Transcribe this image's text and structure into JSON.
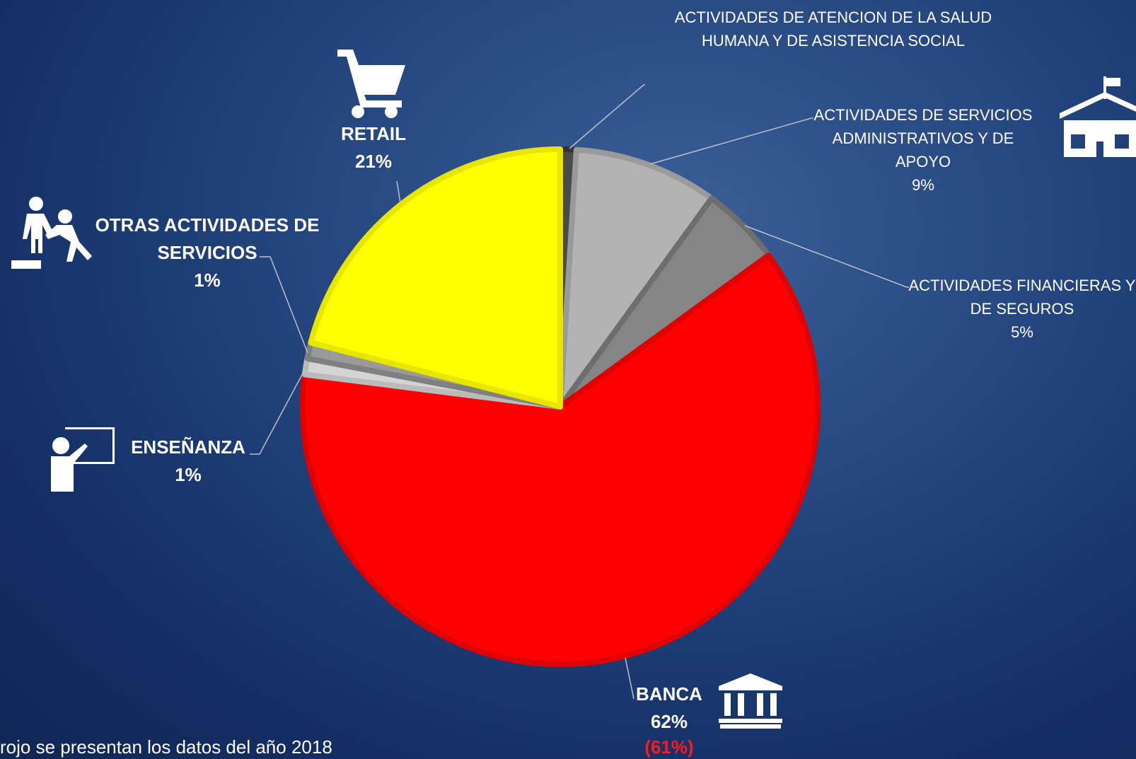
{
  "chart_data": {
    "type": "pie",
    "categories": [
      "ACTIVIDADES DE ATENCION DE LA SALUD HUMANA Y DE ASISTENCIA SOCIAL",
      "ACTIVIDADES DE SERVICIOS ADMINISTRATIVOS Y DE APOYO",
      "ACTIVIDADES FINANCIERAS Y DE SEGUROS",
      "BANCA",
      "ENSEÑANZA",
      "OTRAS ACTIVIDADES DE SERVICIOS",
      "RETAIL"
    ],
    "values": [
      1,
      9,
      5,
      62,
      1,
      1,
      21
    ],
    "value_labels": [
      null,
      "9%",
      "5%",
      "62%",
      "1%",
      "1%",
      "21%"
    ],
    "colors": [
      "#4a4a4a",
      "#b3b3b3",
      "#858585",
      "#ff0000",
      "#d4d4d4",
      "#9a9a9a",
      "#ffff00"
    ],
    "stroke_colors": [
      "#333333",
      "#9a9a9a",
      "#6e6e6e",
      "#e00000",
      "#bbbbbb",
      "#808080",
      "#e6e600"
    ],
    "start_angle": 0,
    "direction": "clockwise",
    "annotation": {
      "text": "(61%)",
      "color": "#ff1a1a"
    },
    "footnote": "rojo se presentan los datos del año 2018"
  }
}
